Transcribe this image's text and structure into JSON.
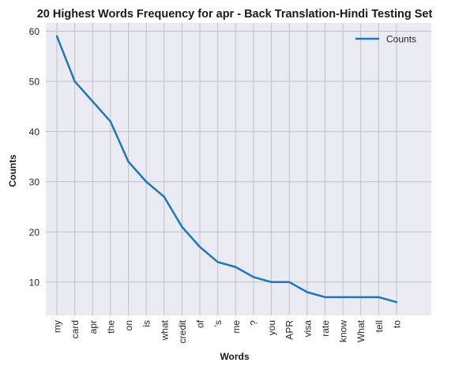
{
  "chart_data": {
    "type": "line",
    "title": "20 Highest Words Frequency for apr - Back Translation-Hindi Testing Set",
    "xlabel": "Words",
    "ylabel": "Counts",
    "categories": [
      "my",
      "card",
      "apr",
      "the",
      "on",
      "is",
      "what",
      "credit",
      "of",
      "'s",
      "me",
      "?",
      "you",
      "APR",
      "visa",
      "rate",
      "know",
      "What",
      "tell",
      "to"
    ],
    "series": [
      {
        "name": "Counts",
        "values": [
          59,
          50,
          46,
          42,
          34,
          30,
          27,
          21,
          17,
          14,
          13,
          11,
          10,
          10,
          8,
          7,
          7,
          7,
          7,
          6
        ],
        "color": "#1f77b4"
      }
    ],
    "yticks": [
      10,
      20,
      30,
      40,
      50,
      60
    ],
    "ylim": [
      3.35,
      61.65
    ],
    "grid": true,
    "legend_position": "top-right",
    "background": "#eaeaf2",
    "grid_color": "#c0c0c8"
  }
}
